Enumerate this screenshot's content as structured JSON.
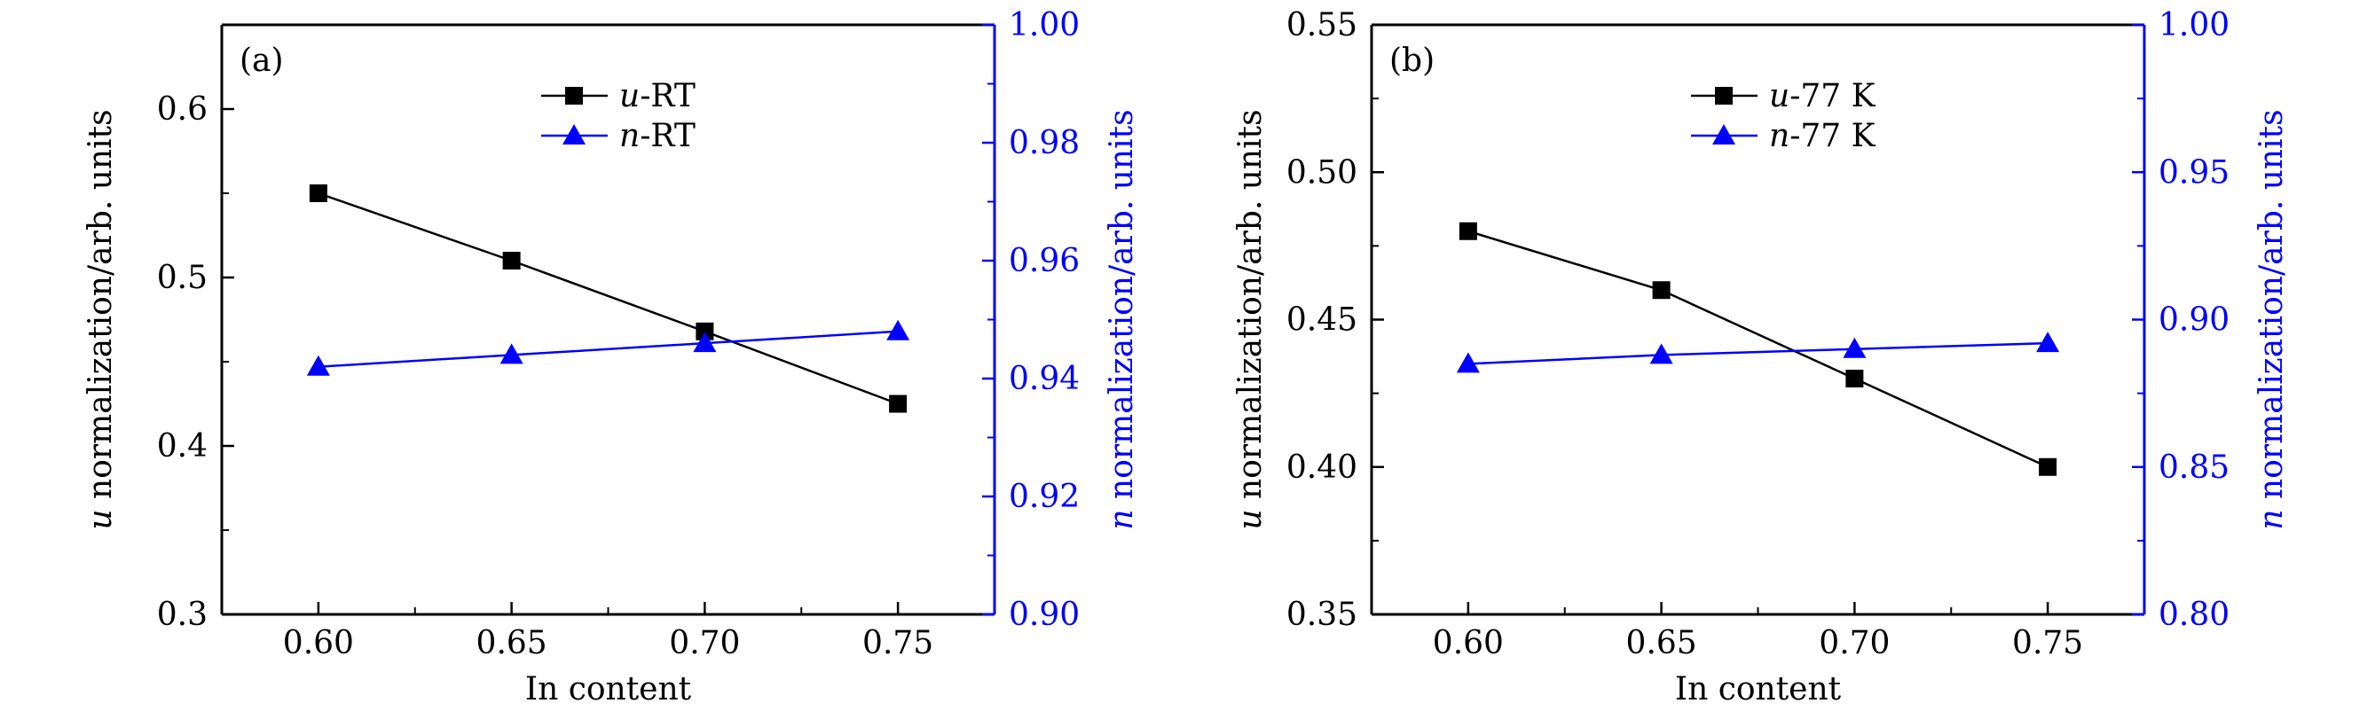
{
  "chart_data": [
    {
      "type": "line",
      "panel_label": "(a)",
      "xlabel": "In content",
      "ylabel_left": {
        "italic": "u",
        "rest": " normalization/arb. units"
      },
      "ylabel_right": {
        "italic": "n",
        "rest": " normalization/arb. units"
      },
      "xlim": [
        0.575,
        0.775
      ],
      "x_ticks": [
        "0.60",
        "0.65",
        "0.70",
        "0.75"
      ],
      "x_tick_values": [
        0.6,
        0.65,
        0.7,
        0.75
      ],
      "ylim_left": [
        0.3,
        0.65
      ],
      "y_ticks_left": [
        "0.3",
        "0.4",
        "0.5",
        "0.6"
      ],
      "y_tick_values_left": [
        0.3,
        0.4,
        0.5,
        0.6
      ],
      "y_minor_step_left": 0.05,
      "ylim_right": [
        0.9,
        1.0
      ],
      "y_ticks_right": [
        "0.90",
        "0.92",
        "0.94",
        "0.96",
        "0.98",
        "1.00"
      ],
      "y_tick_values_right": [
        0.9,
        0.92,
        0.94,
        0.96,
        0.98,
        1.0
      ],
      "y_minor_step_right": 0.01,
      "legend_position": "top-center",
      "series": [
        {
          "name": "u-RT",
          "name_italic": "u",
          "name_rest": "-RT",
          "axis": "left",
          "marker": "square",
          "color": "#000000",
          "x": [
            0.6,
            0.65,
            0.7,
            0.75
          ],
          "values": [
            0.55,
            0.51,
            0.468,
            0.425
          ]
        },
        {
          "name": "n-RT",
          "name_italic": "n",
          "name_rest": "-RT",
          "axis": "right",
          "marker": "triangle",
          "color": "#0000ff",
          "x": [
            0.6,
            0.65,
            0.7,
            0.75
          ],
          "values": [
            0.942,
            0.944,
            0.946,
            0.948
          ]
        }
      ]
    },
    {
      "type": "line",
      "panel_label": "(b)",
      "xlabel": "In content",
      "ylabel_left": {
        "italic": "u",
        "rest": " normalization/arb. units"
      },
      "ylabel_right": {
        "italic": "n",
        "rest": " normalization/arb. units"
      },
      "xlim": [
        0.575,
        0.775
      ],
      "x_ticks": [
        "0.60",
        "0.65",
        "0.70",
        "0.75"
      ],
      "x_tick_values": [
        0.6,
        0.65,
        0.7,
        0.75
      ],
      "ylim_left": [
        0.35,
        0.55
      ],
      "y_ticks_left": [
        "0.35",
        "0.40",
        "0.45",
        "0.50",
        "0.55"
      ],
      "y_tick_values_left": [
        0.35,
        0.4,
        0.45,
        0.5,
        0.55
      ],
      "y_minor_step_left": 0.025,
      "ylim_right": [
        0.8,
        1.0
      ],
      "y_ticks_right": [
        "0.80",
        "0.85",
        "0.90",
        "0.95",
        "1.00"
      ],
      "y_tick_values_right": [
        0.8,
        0.85,
        0.9,
        0.95,
        1.0
      ],
      "y_minor_step_right": 0.025,
      "legend_position": "top-center",
      "series": [
        {
          "name": "u-77 K",
          "name_italic": "u",
          "name_rest": "-77 K",
          "axis": "left",
          "marker": "square",
          "color": "#000000",
          "x": [
            0.6,
            0.65,
            0.7,
            0.75
          ],
          "values": [
            0.48,
            0.46,
            0.43,
            0.4
          ]
        },
        {
          "name": "n-77 K",
          "name_italic": "n",
          "name_rest": "-77 K",
          "axis": "right",
          "marker": "triangle",
          "color": "#0000ff",
          "x": [
            0.6,
            0.65,
            0.7,
            0.75
          ],
          "values": [
            0.885,
            0.888,
            0.89,
            0.892
          ]
        }
      ]
    }
  ]
}
